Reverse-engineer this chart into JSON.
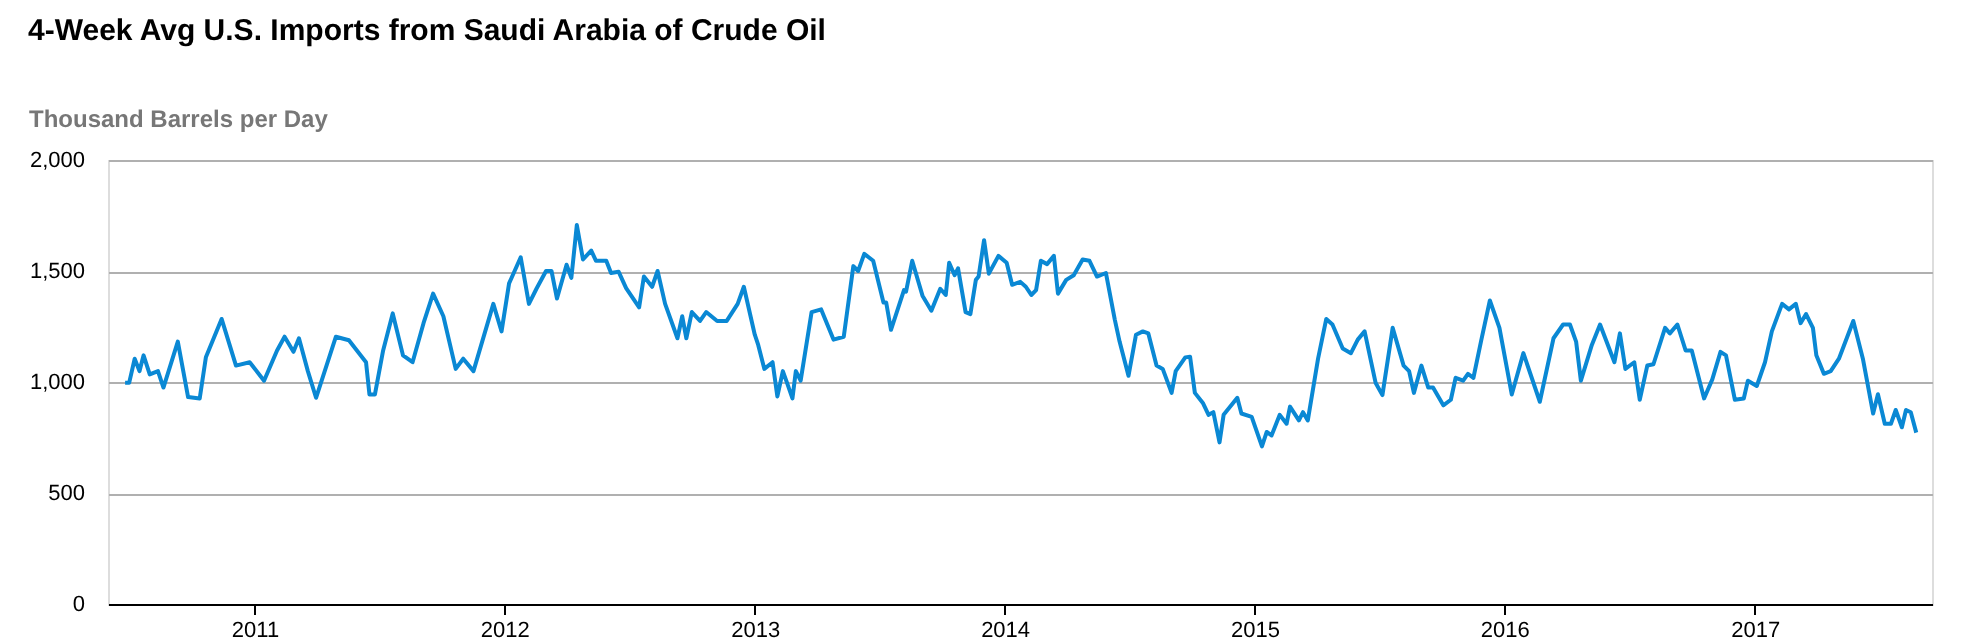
{
  "chart_data": {
    "type": "line",
    "title": "4-Week Avg U.S. Imports from Saudi Arabia of Crude Oil",
    "ylabel": "Thousand Barrels per Day",
    "xlim": [
      "2010-06-01",
      "2017-09-17"
    ],
    "xticks": [
      "2011",
      "2012",
      "2013",
      "2014",
      "2015",
      "2016",
      "2017"
    ],
    "ylim": [
      0,
      2000
    ],
    "yticks": [
      0,
      500,
      {
        "value": 1000,
        "label": "1,000"
      },
      {
        "value": 1500,
        "label": "1,500"
      },
      {
        "value": 2000,
        "label": "2,000"
      }
    ],
    "grid": "y",
    "marker": "none",
    "line_style": "solid",
    "x": [
      "2010-06-26",
      "2010-07-02",
      "2010-07-10",
      "2010-07-17",
      "2010-07-23",
      "2010-08-01",
      "2010-08-13",
      "2010-08-21",
      "2010-09-11",
      "2010-09-26",
      "2010-10-13",
      "2010-10-22",
      "2010-11-14",
      "2010-12-05",
      "2010-12-25",
      "2011-01-15",
      "2011-02-03",
      "2011-02-14",
      "2011-02-27",
      "2011-03-07",
      "2011-03-20",
      "2011-04-01",
      "2011-04-30",
      "2011-05-19",
      "2011-06-13",
      "2011-06-18",
      "2011-06-26",
      "2011-07-08",
      "2011-07-22",
      "2011-08-06",
      "2011-08-20",
      "2011-09-05",
      "2011-09-19",
      "2011-10-04",
      "2011-10-22",
      "2011-11-02",
      "2011-11-17",
      "2011-12-16",
      "2011-12-28",
      "2012-01-08",
      "2012-01-25",
      "2012-02-06",
      "2012-02-17",
      "2012-03-02",
      "2012-03-10",
      "2012-03-18",
      "2012-04-01",
      "2012-04-08",
      "2012-04-16",
      "2012-04-25",
      "2012-05-07",
      "2012-05-14",
      "2012-05-29",
      "2012-06-05",
      "2012-06-16",
      "2012-06-27",
      "2012-07-16",
      "2012-07-23",
      "2012-08-04",
      "2012-08-12",
      "2012-08-23",
      "2012-09-10",
      "2012-09-17",
      "2012-09-23",
      "2012-10-01",
      "2012-10-13",
      "2012-10-22",
      "2012-11-07",
      "2012-11-21",
      "2012-12-07",
      "2012-12-16",
      "2013-01-01",
      "2013-01-06",
      "2013-01-15",
      "2013-01-27",
      "2013-02-03",
      "2013-02-11",
      "2013-02-17",
      "2013-02-25",
      "2013-03-02",
      "2013-03-09",
      "2013-03-25",
      "2013-04-08",
      "2013-04-26",
      "2013-05-11",
      "2013-05-25",
      "2013-06-01",
      "2013-06-10",
      "2013-06-23",
      "2013-07-08",
      "2013-07-12",
      "2013-07-19",
      "2013-08-07",
      "2013-08-10",
      "2013-08-19",
      "2013-09-03",
      "2013-09-16",
      "2013-09-29",
      "2013-10-07",
      "2013-10-12",
      "2013-10-20",
      "2013-10-25",
      "2013-11-05",
      "2013-11-12",
      "2013-11-20",
      "2013-11-24",
      "2013-12-02",
      "2013-12-09",
      "2013-12-23",
      "2014-01-04",
      "2014-01-12",
      "2014-01-24",
      "2014-02-01",
      "2014-02-09",
      "2014-02-16",
      "2014-02-23",
      "2014-03-04",
      "2014-03-14",
      "2014-03-20",
      "2014-04-01",
      "2014-04-12",
      "2014-04-25",
      "2014-05-05",
      "2014-05-16",
      "2014-05-29",
      "2014-06-11",
      "2014-06-18",
      "2014-07-01",
      "2014-07-12",
      "2014-07-22",
      "2014-07-30",
      "2014-08-11",
      "2014-08-20",
      "2014-09-02",
      "2014-09-08",
      "2014-09-22",
      "2014-09-29",
      "2014-10-06",
      "2014-10-18",
      "2014-10-26",
      "2014-11-02",
      "2014-11-11",
      "2014-11-17",
      "2014-12-07",
      "2014-12-13",
      "2014-12-28",
      "2015-01-12",
      "2015-01-19",
      "2015-01-26",
      "2015-02-07",
      "2015-02-17",
      "2015-02-22",
      "2015-03-07",
      "2015-03-13",
      "2015-03-20",
      "2015-04-04",
      "2015-04-16",
      "2015-04-25",
      "2015-05-10",
      "2015-05-22",
      "2015-06-01",
      "2015-06-11",
      "2015-06-27",
      "2015-07-07",
      "2015-07-22",
      "2015-08-07",
      "2015-08-15",
      "2015-08-22",
      "2015-09-02",
      "2015-09-12",
      "2015-09-19",
      "2015-10-04",
      "2015-10-15",
      "2015-10-22",
      "2015-11-02",
      "2015-11-09",
      "2015-11-17",
      "2015-11-28",
      "2015-12-11",
      "2015-12-25",
      "2016-01-12",
      "2016-01-29",
      "2016-02-22",
      "2016-03-13",
      "2016-03-27",
      "2016-04-06",
      "2016-04-15",
      "2016-04-22",
      "2016-05-08",
      "2016-05-20",
      "2016-06-10",
      "2016-06-18",
      "2016-06-26",
      "2016-07-09",
      "2016-07-17",
      "2016-07-28",
      "2016-08-06",
      "2016-08-23",
      "2016-08-30",
      "2016-09-10",
      "2016-09-22",
      "2016-10-01",
      "2016-10-19",
      "2016-10-31",
      "2016-11-12",
      "2016-11-20",
      "2016-12-03",
      "2016-12-16",
      "2016-12-22",
      "2017-01-04",
      "2017-01-16",
      "2017-01-26",
      "2017-02-10",
      "2017-02-20",
      "2017-03-02",
      "2017-03-09",
      "2017-03-17",
      "2017-03-27",
      "2017-04-01",
      "2017-04-12",
      "2017-04-22",
      "2017-05-04",
      "2017-05-25",
      "2017-06-08",
      "2017-06-23",
      "2017-06-30",
      "2017-07-10",
      "2017-07-19",
      "2017-07-26",
      "2017-08-04",
      "2017-08-10",
      "2017-08-17",
      "2017-08-25"
    ],
    "series": [
      {
        "color": "#0a88d4",
        "values": [
          997,
          997,
          1105,
          1049,
          1120,
          1034,
          1049,
          975,
          1182,
          932,
          926,
          1111,
          1284,
          1074,
          1089,
          1006,
          1142,
          1204,
          1136,
          1197,
          1049,
          929,
          1204,
          1188,
          1089,
          944,
          944,
          1142,
          1309,
          1120,
          1089,
          1265,
          1398,
          1296,
          1059,
          1105,
          1049,
          1352,
          1228,
          1444,
          1562,
          1352,
          1420,
          1500,
          1500,
          1376,
          1528,
          1469,
          1707,
          1552,
          1592,
          1546,
          1546,
          1491,
          1497,
          1423,
          1336,
          1475,
          1429,
          1500,
          1352,
          1197,
          1296,
          1197,
          1315,
          1275,
          1315,
          1275,
          1275,
          1352,
          1429,
          1213,
          1167,
          1059,
          1089,
          935,
          1049,
          997,
          926,
          1049,
          1006,
          1315,
          1327,
          1191,
          1204,
          1522,
          1500,
          1577,
          1546,
          1358,
          1358,
          1235,
          1414,
          1407,
          1546,
          1389,
          1321,
          1420,
          1392,
          1537,
          1481,
          1512,
          1315,
          1306,
          1460,
          1475,
          1639,
          1488,
          1568,
          1537,
          1438,
          1451,
          1429,
          1392,
          1414,
          1546,
          1531,
          1568,
          1398,
          1460,
          1481,
          1552,
          1546,
          1475,
          1491,
          1281,
          1182,
          1028,
          1213,
          1228,
          1219,
          1074,
          1059,
          951,
          1049,
          1111,
          1114,
          951,
          904,
          852,
          864,
          728,
          852,
          929,
          858,
          843,
          710,
          775,
          759,
          852,
          812,
          889,
          827,
          864,
          827,
          1105,
          1284,
          1259,
          1151,
          1130,
          1191,
          1228,
          997,
          941,
          1244,
          1074,
          1049,
          951,
          1074,
          975,
          975,
          895,
          920,
          1019,
          1006,
          1037,
          1019,
          1182,
          1367,
          1244,
          944,
          1130,
          911,
          1197,
          1259,
          1259,
          1182,
          1006,
          1167,
          1259,
          1089,
          1219,
          1059,
          1089,
          920,
          1074,
          1080,
          1244,
          1219,
          1259,
          1142,
          1142,
          926,
          1012,
          1136,
          1120,
          920,
          926,
          1006,
          982,
          1089,
          1228,
          1352,
          1327,
          1352,
          1265,
          1306,
          1244,
          1120,
          1037,
          1049,
          1105,
          1275,
          1105,
          858,
          945,
          812,
          812,
          874,
          796,
          874,
          864,
          772
        ]
      }
    ]
  }
}
